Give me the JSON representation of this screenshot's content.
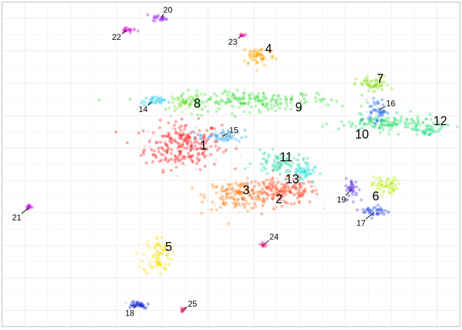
{
  "chart_data": {
    "type": "scatter",
    "title": "",
    "xlabel": "",
    "ylabel": "",
    "xlim": [
      0,
      100
    ],
    "ylim": [
      0,
      100
    ],
    "grid": true,
    "legend": "none",
    "clusters": [
      {
        "label": "1",
        "color": "#ff1010",
        "cx": 39.5,
        "cy": 55.8,
        "sx": 4.2,
        "sy": 3.6,
        "n": 260,
        "label_pos": [
          44.0,
          55.8
        ],
        "label_size": "large"
      },
      {
        "label": "2",
        "color": "#ff3a12",
        "cx": 61.0,
        "cy": 41.5,
        "sx": 4.2,
        "sy": 2.0,
        "n": 180,
        "label_pos": [
          60.5,
          39.3
        ],
        "label_size": "large"
      },
      {
        "label": "3",
        "color": "#ff7a10",
        "cx": 51.5,
        "cy": 40.5,
        "sx": 3.5,
        "sy": 2.2,
        "n": 160,
        "label_pos": [
          53.3,
          42.1
        ],
        "label_size": "large"
      },
      {
        "label": "4",
        "color": "#ffa500",
        "cx": 56.0,
        "cy": 83.5,
        "sx": 1.8,
        "sy": 1.6,
        "n": 70,
        "label_pos": [
          58.2,
          85.6
        ],
        "label_size": "large"
      },
      {
        "label": "5",
        "color": "#f5e000",
        "cx": 34.0,
        "cy": 22.0,
        "sx": 1.6,
        "sy": 3.0,
        "n": 90,
        "label_pos": [
          36.4,
          24.6
        ],
        "label_size": "large"
      },
      {
        "label": "6",
        "color": "#b8ee10",
        "cx": 83.5,
        "cy": 43.5,
        "sx": 1.4,
        "sy": 1.4,
        "n": 70,
        "label_pos": [
          81.6,
          40.1
        ],
        "label_size": "large"
      },
      {
        "label": "7",
        "color": "#90e020",
        "cx": 81.0,
        "cy": 74.5,
        "sx": 1.8,
        "sy": 1.3,
        "n": 70,
        "label_pos": [
          82.6,
          76.4
        ],
        "label_size": "large"
      },
      {
        "label": "8",
        "color": "#66e022",
        "cx": 40.5,
        "cy": 69.0,
        "sx": 1.8,
        "sy": 1.3,
        "n": 55,
        "label_pos": [
          42.6,
          68.8
        ],
        "label_size": "large"
      },
      {
        "label": "9",
        "color": "#33dd33",
        "cx": 55.0,
        "cy": 69.5,
        "sx": 9.0,
        "sy": 1.5,
        "n": 220,
        "label_pos": [
          64.8,
          67.6
        ],
        "label_size": "large"
      },
      {
        "label": "10",
        "color": "#22dd66",
        "cx": 84.5,
        "cy": 62.5,
        "sx": 5.5,
        "sy": 1.3,
        "n": 160,
        "label_pos": [
          78.6,
          59.2
        ],
        "label_size": "large"
      },
      {
        "label": "11",
        "color": "#20d8a0",
        "cx": 60.5,
        "cy": 50.5,
        "sx": 2.8,
        "sy": 1.6,
        "n": 90,
        "label_pos": [
          62.0,
          52.2
        ],
        "label_size": "large"
      },
      {
        "label": "12",
        "color": "#22dd88",
        "cx": 93.0,
        "cy": 60.5,
        "sx": 1.5,
        "sy": 0.9,
        "n": 40,
        "label_pos": [
          95.7,
          63.4
        ],
        "label_size": "large"
      },
      {
        "label": "13",
        "color": "#10e0d8",
        "cx": 65.5,
        "cy": 47.5,
        "sx": 1.4,
        "sy": 1.4,
        "n": 55,
        "label_pos": [
          63.4,
          45.4
        ],
        "label_size": "large"
      },
      {
        "label": "14",
        "color": "#12c8f0",
        "cx": 33.0,
        "cy": 69.5,
        "sx": 1.3,
        "sy": 0.7,
        "n": 35,
        "label_pos": [
          30.8,
          67.0
        ],
        "label_size": "small"
      },
      {
        "label": "15",
        "color": "#20a0f0",
        "cx": 48.0,
        "cy": 58.5,
        "sx": 2.5,
        "sy": 1.0,
        "n": 55,
        "label_pos": [
          50.6,
          60.5
        ],
        "label_size": "small"
      },
      {
        "label": "16",
        "color": "#1060f0",
        "cx": 82.0,
        "cy": 66.5,
        "sx": 1.0,
        "sy": 1.8,
        "n": 50,
        "label_pos": [
          84.9,
          68.8
        ],
        "label_size": "small"
      },
      {
        "label": "17",
        "color": "#2040e8",
        "cx": 81.5,
        "cy": 35.5,
        "sx": 1.5,
        "sy": 0.9,
        "n": 45,
        "label_pos": [
          78.4,
          31.9
        ],
        "label_size": "small"
      },
      {
        "label": "18",
        "color": "#1020d0",
        "cx": 29.5,
        "cy": 6.8,
        "sx": 1.4,
        "sy": 0.6,
        "n": 40,
        "label_pos": [
          27.9,
          4.1
        ],
        "label_size": "small"
      },
      {
        "label": "19",
        "color": "#6030f0",
        "cx": 76.5,
        "cy": 42.5,
        "sx": 0.7,
        "sy": 1.6,
        "n": 45,
        "label_pos": [
          74.1,
          39.1
        ],
        "label_size": "small"
      },
      {
        "label": "20",
        "color": "#9010e8",
        "cx": 34.5,
        "cy": 95.0,
        "sx": 0.8,
        "sy": 0.5,
        "n": 25,
        "label_pos": [
          36.2,
          97.6
        ],
        "label_size": "small"
      },
      {
        "label": "21",
        "color": "#c010e0",
        "cx": 6.0,
        "cy": 36.8,
        "sx": 0.4,
        "sy": 0.4,
        "n": 18,
        "label_pos": [
          3.2,
          33.6
        ],
        "label_size": "small"
      },
      {
        "label": "22",
        "color": "#e010d8",
        "cx": 27.5,
        "cy": 91.5,
        "sx": 0.8,
        "sy": 0.5,
        "n": 25,
        "label_pos": [
          25.0,
          89.2
        ],
        "label_size": "small"
      },
      {
        "label": "23",
        "color": "#f010a0",
        "cx": 52.5,
        "cy": 89.8,
        "sx": 0.3,
        "sy": 0.3,
        "n": 12,
        "label_pos": [
          50.4,
          87.7
        ],
        "label_size": "small"
      },
      {
        "label": "24",
        "color": "#f01080",
        "cx": 57.0,
        "cy": 25.2,
        "sx": 0.3,
        "sy": 0.3,
        "n": 14,
        "label_pos": [
          59.4,
          27.7
        ],
        "label_size": "small"
      },
      {
        "label": "25",
        "color": "#f01050",
        "cx": 39.5,
        "cy": 5.2,
        "sx": 0.3,
        "sy": 0.3,
        "n": 12,
        "label_pos": [
          41.6,
          7.0
        ],
        "label_size": "small"
      }
    ]
  }
}
